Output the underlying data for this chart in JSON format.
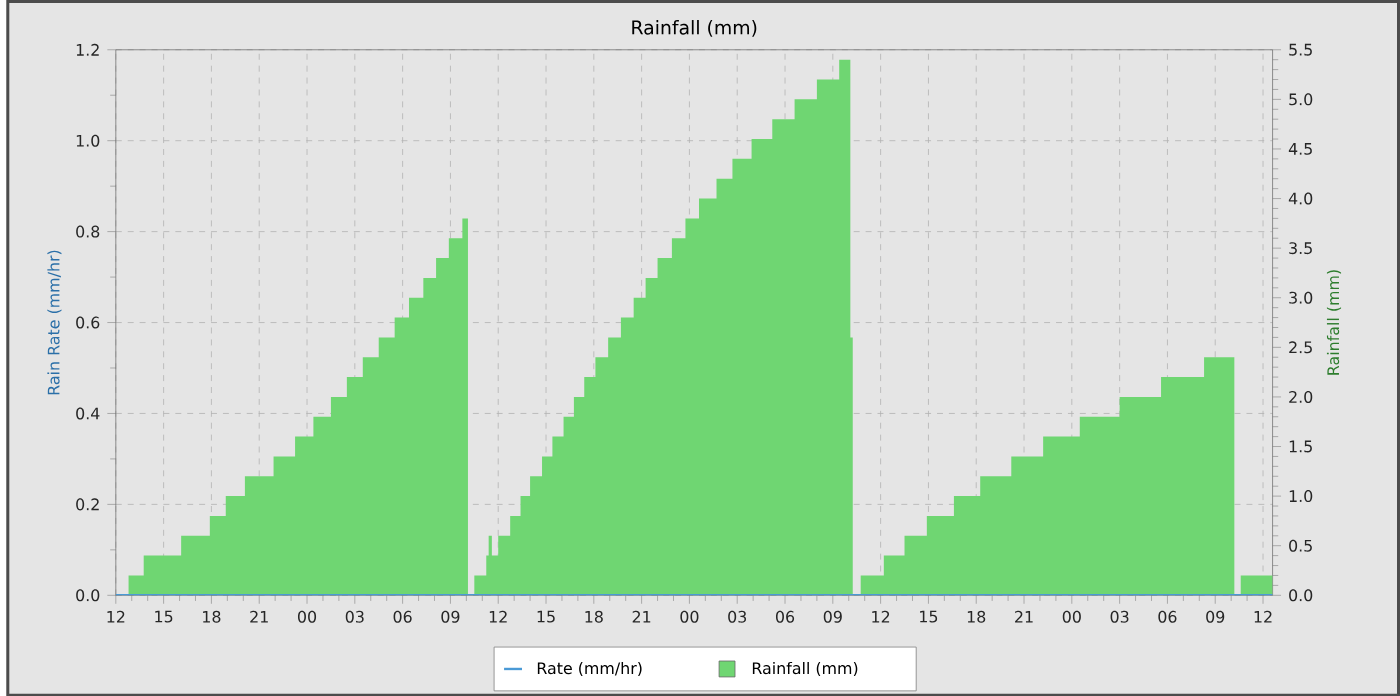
{
  "chart_data": {
    "type": "area",
    "title": "Rainfall (mm)",
    "ylabel": "Rain Rate (mm/hr)",
    "y2label": "Rainfall (mm)",
    "xlim": [
      12,
      84.6
    ],
    "xticks": [
      {
        "value": 12,
        "label": "12"
      },
      {
        "value": 15,
        "label": "15"
      },
      {
        "value": 18,
        "label": "18"
      },
      {
        "value": 21,
        "label": "21"
      },
      {
        "value": 24,
        "label": "00"
      },
      {
        "value": 27,
        "label": "03"
      },
      {
        "value": 30,
        "label": "06"
      },
      {
        "value": 33,
        "label": "09"
      },
      {
        "value": 36,
        "label": "12"
      },
      {
        "value": 39,
        "label": "15"
      },
      {
        "value": 42,
        "label": "18"
      },
      {
        "value": 45,
        "label": "21"
      },
      {
        "value": 48,
        "label": "00"
      },
      {
        "value": 51,
        "label": "03"
      },
      {
        "value": 54,
        "label": "06"
      },
      {
        "value": 57,
        "label": "09"
      },
      {
        "value": 60,
        "label": "12"
      },
      {
        "value": 63,
        "label": "15"
      },
      {
        "value": 66,
        "label": "18"
      },
      {
        "value": 69,
        "label": "21"
      },
      {
        "value": 72,
        "label": "00"
      },
      {
        "value": 75,
        "label": "03"
      },
      {
        "value": 78,
        "label": "06"
      },
      {
        "value": 81,
        "label": "09"
      },
      {
        "value": 84,
        "label": "12"
      }
    ],
    "ylim": [
      0,
      1.2
    ],
    "yticks": [
      {
        "value": 0,
        "label": "0.0"
      },
      {
        "value": 0.2,
        "label": "0.2"
      },
      {
        "value": 0.4,
        "label": "0.4"
      },
      {
        "value": 0.6,
        "label": "0.6"
      },
      {
        "value": 0.8,
        "label": "0.8"
      },
      {
        "value": 1,
        "label": "1.0"
      },
      {
        "value": 1.2,
        "label": "1.2"
      }
    ],
    "y2lim": [
      0,
      5.5
    ],
    "y2ticks": [
      {
        "value": 0,
        "label": "0.0"
      },
      {
        "value": 0.5,
        "label": "0.5"
      },
      {
        "value": 1,
        "label": "1.0"
      },
      {
        "value": 1.5,
        "label": "1.5"
      },
      {
        "value": 2,
        "label": "2.0"
      },
      {
        "value": 2.5,
        "label": "2.5"
      },
      {
        "value": 3,
        "label": "3.0"
      },
      {
        "value": 3.5,
        "label": "3.5"
      },
      {
        "value": 4,
        "label": "4.0"
      },
      {
        "value": 4.5,
        "label": "4.5"
      },
      {
        "value": 5,
        "label": "5.0"
      },
      {
        "value": 5.5,
        "label": "5.5"
      }
    ],
    "grid": true,
    "legend": "bottom",
    "series": [
      {
        "name": "Rate (mm/hr)",
        "type": "line",
        "color": "#4a9ad6",
        "x": [
          12,
          18,
          24,
          30,
          36,
          42,
          48,
          54,
          60,
          66,
          72,
          78,
          84.6
        ],
        "values": [
          0,
          0,
          0,
          0,
          0,
          0,
          0,
          0,
          0,
          0,
          0,
          0,
          0
        ]
      },
      {
        "name": "Rainfall (mm)",
        "axis": "y2",
        "color": "#6fd672",
        "x": [
          12,
          12.8,
          13.75,
          16.1,
          17.9,
          18.9,
          20.1,
          21.9,
          23.25,
          24.4,
          25.5,
          26.5,
          27.5,
          28.5,
          29.5,
          30.4,
          31.3,
          32.1,
          32.9,
          33.75,
          34.1,
          34.5,
          35.25,
          35.4,
          35.6,
          36.0,
          36.75,
          37.4,
          38.0,
          38.75,
          39.4,
          40.1,
          40.75,
          41.4,
          42.1,
          42.9,
          43.7,
          44.5,
          45.25,
          46.0,
          46.9,
          47.75,
          48.6,
          49.7,
          50.7,
          51.9,
          53.2,
          54.6,
          56.0,
          57.4,
          58.1,
          58.25,
          58.75,
          60.2,
          61.5,
          62.9,
          64.6,
          66.25,
          68.2,
          70.2,
          72.5,
          75.0,
          77.6,
          80.3,
          82.2,
          82.6,
          84.6
        ],
        "values": [
          0,
          0.2,
          0.4,
          0.6,
          0.8,
          1.0,
          1.2,
          1.4,
          1.6,
          1.8,
          2.0,
          2.2,
          2.4,
          2.6,
          2.8,
          3.0,
          3.2,
          3.4,
          3.6,
          3.8,
          0,
          0.2,
          0.4,
          0.6,
          0.4,
          0.6,
          0.8,
          1.0,
          1.2,
          1.4,
          1.6,
          1.8,
          2.0,
          2.2,
          2.4,
          2.6,
          2.8,
          3.0,
          3.2,
          3.4,
          3.6,
          3.8,
          4.0,
          4.2,
          4.4,
          4.6,
          4.8,
          5.0,
          5.2,
          5.4,
          2.6,
          0,
          0.2,
          0.4,
          0.6,
          0.8,
          1.0,
          1.2,
          1.4,
          1.6,
          1.8,
          2.0,
          2.2,
          2.4,
          0,
          0.2,
          0.2
        ]
      }
    ]
  }
}
